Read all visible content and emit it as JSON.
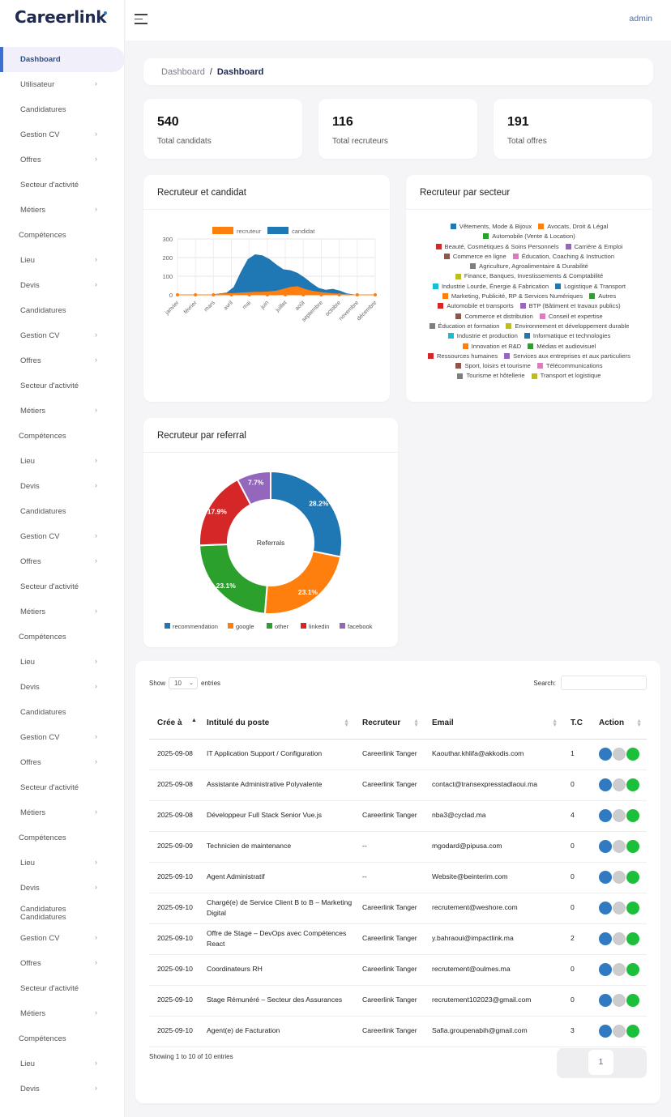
{
  "brand": {
    "logo_text": "Careerlink"
  },
  "topbar": {
    "user": "admin"
  },
  "sidebar": {
    "items": [
      {
        "label": "Dashboard",
        "active": true,
        "chevron": false
      },
      {
        "label": "Utilisateur",
        "chevron": true
      },
      {
        "label": "Candidatures",
        "chevron": false
      },
      {
        "label": "Gestion CV",
        "chevron": true
      },
      {
        "label": "Offres",
        "chevron": true
      },
      {
        "label": "Secteur d'activité",
        "chevron": false
      },
      {
        "label": "Métiers",
        "chevron": true
      },
      {
        "label": "Compétences",
        "chevron": false,
        "sub": true
      },
      {
        "label": "Lieu",
        "chevron": true
      },
      {
        "label": "Devis",
        "chevron": true
      },
      {
        "label": "Candidatures",
        "chevron": false
      },
      {
        "label": "Gestion CV",
        "chevron": true
      },
      {
        "label": "Offres",
        "chevron": true
      },
      {
        "label": "Secteur d'activité",
        "chevron": false
      },
      {
        "label": "Métiers",
        "chevron": true
      },
      {
        "label": "Compétences",
        "chevron": false,
        "sub": true
      },
      {
        "label": "Lieu",
        "chevron": true
      },
      {
        "label": "Devis",
        "chevron": true
      },
      {
        "label": "Candidatures",
        "chevron": false
      },
      {
        "label": "Gestion CV",
        "chevron": true
      },
      {
        "label": "Offres",
        "chevron": true
      },
      {
        "label": "Secteur d'activité",
        "chevron": false
      },
      {
        "label": "Métiers",
        "chevron": true
      },
      {
        "label": "Compétences",
        "chevron": false,
        "sub": true
      },
      {
        "label": "Lieu",
        "chevron": true
      },
      {
        "label": "Devis",
        "chevron": true
      },
      {
        "label": "Candidatures",
        "chevron": false
      },
      {
        "label": "Gestion CV",
        "chevron": true
      },
      {
        "label": "Offres",
        "chevron": true
      },
      {
        "label": "Secteur d'activité",
        "chevron": false
      },
      {
        "label": "Métiers",
        "chevron": true
      },
      {
        "label": "Compétences",
        "chevron": false,
        "sub": true
      },
      {
        "label": "Lieu",
        "chevron": true
      },
      {
        "label": "Devis",
        "chevron": true
      },
      {
        "label": "Candidatures",
        "label2": "Candidatures",
        "chevron": false
      },
      {
        "label": "Gestion CV",
        "chevron": true
      },
      {
        "label": "Offres",
        "chevron": true
      },
      {
        "label": "Secteur d'activité",
        "chevron": false
      },
      {
        "label": "Métiers",
        "chevron": true
      },
      {
        "label": "Compétences",
        "chevron": false,
        "sub": true
      },
      {
        "label": "Lieu",
        "chevron": true
      },
      {
        "label": "Devis",
        "chevron": true
      }
    ]
  },
  "breadcrumb": {
    "parent": "Dashboard",
    "separator": "/",
    "current": "Dashboard"
  },
  "stats": [
    {
      "value": "540",
      "label": "Total candidats"
    },
    {
      "value": "116",
      "label": "Total recruteurs"
    },
    {
      "value": "191",
      "label": "Total offres"
    }
  ],
  "colors": {
    "blue": "#1f77b4",
    "orange": "#ff7f0e",
    "green": "#2ca02c",
    "red": "#d62728",
    "purple": "#9467bd",
    "brown": "#8c564b",
    "pink": "#e377c2",
    "gray": "#7f7f7f",
    "olive": "#bcbd22",
    "cyan": "#17becf",
    "action_blue": "#2f7ac0",
    "action_gray": "#cccccc",
    "action_green": "#1cbf3a"
  },
  "cards": {
    "line_title": "Recruteur et candidat",
    "sector_title": "Recruteur par secteur",
    "referral_title": "Recruteur par referral"
  },
  "chart_data": [
    {
      "type": "area",
      "title": "Recruteur et candidat",
      "categories": [
        "janvier",
        "février",
        "mars",
        "avril",
        "mai",
        "juin",
        "juillet",
        "août",
        "septembre",
        "octobre",
        "novembre",
        "décembre"
      ],
      "x": [
        "janvier",
        "",
        "février",
        "",
        "mars",
        "",
        "avril",
        "",
        "mai",
        "",
        "",
        "",
        "juin",
        "",
        "",
        "",
        "juillet",
        "",
        "août",
        "",
        "",
        "",
        "septembre",
        "",
        "octobre",
        "",
        "novembre",
        "",
        "décembre"
      ],
      "series": [
        {
          "name": "recruteur",
          "color": "#ff7f0e",
          "values": [
            0,
            0,
            0,
            0,
            0,
            0,
            5,
            6,
            8,
            10,
            12,
            14,
            14,
            16,
            20,
            30,
            40,
            44,
            30,
            20,
            14,
            10,
            6,
            4,
            2,
            0,
            0,
            0,
            0
          ]
        },
        {
          "name": "candidat",
          "color": "#1f77b4",
          "values": [
            0,
            0,
            0,
            0,
            0,
            0,
            5,
            10,
            40,
            120,
            190,
            215,
            210,
            190,
            160,
            135,
            130,
            115,
            90,
            60,
            35,
            25,
            30,
            20,
            5,
            0,
            0,
            0,
            0
          ]
        }
      ],
      "ylim": [
        0,
        300
      ],
      "yticks": [
        0,
        100,
        200,
        300
      ],
      "legend": "top",
      "grid": true
    },
    {
      "type": "legend",
      "title": "Recruteur par secteur",
      "rows": [
        [
          {
            "label": "Vêtements, Mode & Bijoux",
            "color": "#1f77b4"
          },
          {
            "label": "Avocats, Droit & Légal",
            "color": "#ff7f0e"
          }
        ],
        [
          {
            "label": "Automobile (Vente & Location)",
            "color": "#2ca02c"
          }
        ],
        [
          {
            "label": "Beauté, Cosmétiques & Soins Personnels",
            "color": "#d62728"
          },
          {
            "label": "Carrière & Emploi",
            "color": "#9467bd"
          }
        ],
        [
          {
            "label": "Commerce en ligne",
            "color": "#8c564b"
          },
          {
            "label": "Éducation, Coaching & Instruction",
            "color": "#e377c2"
          }
        ],
        [
          {
            "label": "Agriculture, Agroalimentaire & Durabilité",
            "color": "#7f7f7f"
          }
        ],
        [
          {
            "label": "Finance, Banques, Investissements & Comptabilité",
            "color": "#bcbd22"
          }
        ],
        [
          {
            "label": "Industrie Lourde, Énergie & Fabrication",
            "color": "#17becf"
          },
          {
            "label": "Logistique & Transport",
            "color": "#1f77b4"
          }
        ],
        [
          {
            "label": "Marketing, Publicité, RP & Services Numériques",
            "color": "#ff7f0e"
          },
          {
            "label": "Autres",
            "color": "#2ca02c"
          }
        ],
        [
          {
            "label": "Automobile et transports",
            "color": "#d62728"
          },
          {
            "label": "BTP (Bâtiment et travaux publics)",
            "color": "#9467bd"
          }
        ],
        [
          {
            "label": "Commerce et distribution",
            "color": "#8c564b"
          },
          {
            "label": "Conseil et expertise",
            "color": "#e377c2"
          }
        ],
        [
          {
            "label": "Éducation et formation",
            "color": "#7f7f7f"
          },
          {
            "label": "Environnement et développement durable",
            "color": "#bcbd22"
          }
        ],
        [
          {
            "label": "Industrie et production",
            "color": "#17becf"
          },
          {
            "label": "Informatique et technologies",
            "color": "#1f77b4"
          }
        ],
        [
          {
            "label": "Innovation et R&D",
            "color": "#ff7f0e"
          },
          {
            "label": "Médias et audiovisuel",
            "color": "#2ca02c"
          }
        ],
        [
          {
            "label": "Ressources humaines",
            "color": "#d62728"
          },
          {
            "label": "Services aux entreprises et aux particuliers",
            "color": "#9467bd"
          }
        ],
        [
          {
            "label": "Sport, loisirs et tourisme",
            "color": "#8c564b"
          },
          {
            "label": "Télécommunications",
            "color": "#e377c2"
          }
        ],
        [
          {
            "label": "Tourisme et hôtellerie",
            "color": "#7f7f7f"
          },
          {
            "label": "Transport et logistique",
            "color": "#bcbd22"
          }
        ]
      ]
    },
    {
      "type": "pie",
      "title": "Recruteur par referral",
      "center_label": "Referrals",
      "slices": [
        {
          "name": "recommendation",
          "value": 28.2,
          "label": "28.2%",
          "color": "#1f77b4"
        },
        {
          "name": "google",
          "value": 23.1,
          "label": "23.1%",
          "color": "#ff7f0e"
        },
        {
          "name": "other",
          "value": 23.1,
          "label": "23.1%",
          "color": "#2ca02c"
        },
        {
          "name": "linkedin",
          "value": 17.9,
          "label": "17.9%",
          "color": "#d62728"
        },
        {
          "name": "facebook",
          "value": 7.7,
          "label": "7.7%",
          "color": "#9467bd"
        }
      ],
      "legend": "bottom"
    }
  ],
  "table": {
    "show_label": "Show",
    "page_size": "10",
    "entries_label": "entries",
    "search_label": "Search:",
    "columns": [
      "Crée à",
      "Intitulé du poste",
      "Recruteur",
      "Email",
      "T.C",
      "Action"
    ],
    "rows": [
      {
        "date": "2025-09-08",
        "title": "IT Application Support / Configuration",
        "recruteur": "Careerlink Tanger",
        "email": "Kaouthar.khlifa@akkodis.com",
        "tc": "1"
      },
      {
        "date": "2025-09-08",
        "title": "Assistante Administrative Polyvalente",
        "recruteur": "Careerlink Tanger",
        "email": "contact@transexpresstadlaoui.ma",
        "tc": "0"
      },
      {
        "date": "2025-09-08",
        "title": "Développeur Full Stack Senior Vue.js",
        "recruteur": "Careerlink Tanger",
        "email": "nba3@cyclad.ma",
        "tc": "4"
      },
      {
        "date": "2025-09-09",
        "title": "Technicien de maintenance",
        "recruteur": "--",
        "email": "mgodard@pipusa.com",
        "tc": "0"
      },
      {
        "date": "2025-09-10",
        "title": "Agent Administratif",
        "recruteur": "--",
        "email": "Website@beinterim.com",
        "tc": "0"
      },
      {
        "date": "2025-09-10",
        "title": "Chargé(e) de Service Client B to B – Marketing Digital",
        "recruteur": "Careerlink Tanger",
        "email": "recrutement@weshore.com",
        "tc": "0"
      },
      {
        "date": "2025-09-10",
        "title": "Offre de Stage – DevOps avec Compétences React",
        "recruteur": "Careerlink Tanger",
        "email": "y.bahraoui@impactlink.ma",
        "tc": "2"
      },
      {
        "date": "2025-09-10",
        "title": "Coordinateurs RH",
        "recruteur": "Careerlink Tanger",
        "email": "recrutement@oulmes.ma",
        "tc": "0"
      },
      {
        "date": "2025-09-10",
        "title": "Stage Rémunéré – Secteur des Assurances",
        "recruteur": "Careerlink Tanger",
        "email": "recrutement102023@gmail.com",
        "tc": "0"
      },
      {
        "date": "2025-09-10",
        "title": "Agent(e) de Facturation",
        "recruteur": "Careerlink Tanger",
        "email": "Safia.groupenabih@gmail.com",
        "tc": "3"
      }
    ],
    "footer": "Showing 1 to 10 of 10 entries",
    "page": "1"
  }
}
